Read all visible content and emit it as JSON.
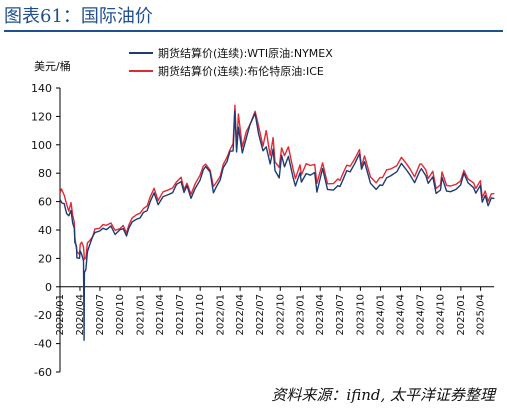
{
  "figure_title": "图表61：国际油价",
  "source": "资料来源：ifind, 太平洋证券整理",
  "chart_data": {
    "type": "line",
    "ylabel": "美元/桶",
    "ylim": [
      -60,
      140
    ],
    "yticks": [
      -60,
      -40,
      -20,
      0,
      20,
      40,
      60,
      80,
      100,
      120,
      140
    ],
    "xlim": [
      "2020-01",
      "2025-06"
    ],
    "xticks": [
      "2020/01",
      "2020/04",
      "2020/07",
      "2020/10",
      "2021/01",
      "2021/04",
      "2021/07",
      "2021/10",
      "2022/01",
      "2022/04",
      "2022/07",
      "2022/10",
      "2023/01",
      "2023/04",
      "2023/07",
      "2023/10",
      "2024/01",
      "2024/04",
      "2024/07",
      "2024/10",
      "2025/01",
      "2025/04"
    ],
    "legend_position": "top-center",
    "grid": false,
    "series": [
      {
        "name": "期货结算价(连续):WTI原油:NYMEX",
        "color": "#1f3b73",
        "points": [
          [
            "2020-01-02",
            61.2
          ],
          [
            "2020-01-10",
            59.0
          ],
          [
            "2020-01-20",
            58.5
          ],
          [
            "2020-01-31",
            51.6
          ],
          [
            "2020-02-10",
            50.0
          ],
          [
            "2020-02-20",
            53.8
          ],
          [
            "2020-02-28",
            44.8
          ],
          [
            "2020-03-06",
            41.3
          ],
          [
            "2020-03-09",
            31.1
          ],
          [
            "2020-03-16",
            28.7
          ],
          [
            "2020-03-18",
            20.4
          ],
          [
            "2020-03-30",
            20.1
          ],
          [
            "2020-04-02",
            25.3
          ],
          [
            "2020-04-09",
            22.8
          ],
          [
            "2020-04-14",
            20.1
          ],
          [
            "2020-04-17",
            18.3
          ],
          [
            "2020-04-20",
            -37.6
          ],
          [
            "2020-04-21",
            10.0
          ],
          [
            "2020-04-28",
            12.3
          ],
          [
            "2020-05-05",
            24.6
          ],
          [
            "2020-05-15",
            29.4
          ],
          [
            "2020-05-29",
            35.5
          ],
          [
            "2020-06-08",
            38.2
          ],
          [
            "2020-06-30",
            39.3
          ],
          [
            "2020-07-15",
            41.2
          ],
          [
            "2020-07-31",
            40.3
          ],
          [
            "2020-08-20",
            42.8
          ],
          [
            "2020-09-08",
            36.8
          ],
          [
            "2020-09-30",
            40.2
          ],
          [
            "2020-10-15",
            40.9
          ],
          [
            "2020-10-30",
            35.8
          ],
          [
            "2020-11-10",
            41.4
          ],
          [
            "2020-11-25",
            45.7
          ],
          [
            "2020-12-15",
            47.6
          ],
          [
            "2020-12-31",
            48.5
          ],
          [
            "2021-01-15",
            52.4
          ],
          [
            "2021-02-01",
            53.6
          ],
          [
            "2021-02-15",
            60.0
          ],
          [
            "2021-03-05",
            66.1
          ],
          [
            "2021-03-23",
            57.8
          ],
          [
            "2021-04-15",
            63.5
          ],
          [
            "2021-05-10",
            65.0
          ],
          [
            "2021-05-28",
            66.3
          ],
          [
            "2021-06-15",
            72.1
          ],
          [
            "2021-07-06",
            74.0
          ],
          [
            "2021-07-19",
            66.4
          ],
          [
            "2021-08-02",
            71.3
          ],
          [
            "2021-08-20",
            62.3
          ],
          [
            "2021-09-08",
            69.3
          ],
          [
            "2021-09-30",
            75.0
          ],
          [
            "2021-10-15",
            82.3
          ],
          [
            "2021-10-26",
            84.7
          ],
          [
            "2021-11-15",
            80.9
          ],
          [
            "2021-11-30",
            66.2
          ],
          [
            "2021-12-15",
            70.9
          ],
          [
            "2021-12-31",
            75.2
          ],
          [
            "2022-01-14",
            83.8
          ],
          [
            "2022-01-31",
            88.2
          ],
          [
            "2022-02-14",
            95.5
          ],
          [
            "2022-02-28",
            95.7
          ],
          [
            "2022-03-08",
            123.7
          ],
          [
            "2022-03-16",
            95.0
          ],
          [
            "2022-03-24",
            112.3
          ],
          [
            "2022-04-11",
            94.3
          ],
          [
            "2022-04-29",
            104.7
          ],
          [
            "2022-05-16",
            114.2
          ],
          [
            "2022-06-08",
            122.1
          ],
          [
            "2022-06-24",
            107.6
          ],
          [
            "2022-07-14",
            95.8
          ],
          [
            "2022-07-29",
            98.6
          ],
          [
            "2022-08-16",
            86.5
          ],
          [
            "2022-08-29",
            97.0
          ],
          [
            "2022-09-07",
            81.9
          ],
          [
            "2022-09-26",
            76.7
          ],
          [
            "2022-10-07",
            92.6
          ],
          [
            "2022-10-20",
            84.5
          ],
          [
            "2022-11-07",
            91.8
          ],
          [
            "2022-11-28",
            77.2
          ],
          [
            "2022-12-09",
            71.0
          ],
          [
            "2022-12-30",
            80.3
          ],
          [
            "2023-01-05",
            73.7
          ],
          [
            "2023-01-27",
            79.7
          ],
          [
            "2023-02-15",
            78.6
          ],
          [
            "2023-03-07",
            80.5
          ],
          [
            "2023-03-17",
            66.7
          ],
          [
            "2023-04-12",
            83.3
          ],
          [
            "2023-05-04",
            68.6
          ],
          [
            "2023-05-31",
            68.1
          ],
          [
            "2023-06-20",
            71.2
          ],
          [
            "2023-06-30",
            70.6
          ],
          [
            "2023-07-14",
            75.4
          ],
          [
            "2023-07-31",
            81.8
          ],
          [
            "2023-08-15",
            80.9
          ],
          [
            "2023-09-05",
            86.7
          ],
          [
            "2023-09-27",
            93.7
          ],
          [
            "2023-10-06",
            82.8
          ],
          [
            "2023-10-20",
            88.1
          ],
          [
            "2023-11-16",
            72.9
          ],
          [
            "2023-12-12",
            68.6
          ],
          [
            "2023-12-29",
            71.7
          ],
          [
            "2024-01-10",
            71.4
          ],
          [
            "2024-01-29",
            76.8
          ],
          [
            "2024-02-15",
            78.0
          ],
          [
            "2024-03-15",
            81.0
          ],
          [
            "2024-04-05",
            86.9
          ],
          [
            "2024-04-30",
            81.9
          ],
          [
            "2024-05-15",
            78.6
          ],
          [
            "2024-06-04",
            73.3
          ],
          [
            "2024-06-28",
            81.5
          ],
          [
            "2024-07-05",
            83.2
          ],
          [
            "2024-07-25",
            78.3
          ],
          [
            "2024-08-05",
            72.9
          ],
          [
            "2024-08-26",
            77.4
          ],
          [
            "2024-09-10",
            65.8
          ],
          [
            "2024-09-30",
            68.2
          ],
          [
            "2024-10-07",
            77.1
          ],
          [
            "2024-10-28",
            67.4
          ],
          [
            "2024-11-15",
            67.0
          ],
          [
            "2024-12-10",
            68.6
          ],
          [
            "2024-12-31",
            71.7
          ],
          [
            "2025-01-15",
            80.0
          ],
          [
            "2025-02-03",
            73.2
          ],
          [
            "2025-02-28",
            69.8
          ],
          [
            "2025-03-10",
            66.0
          ],
          [
            "2025-03-31",
            71.5
          ],
          [
            "2025-04-08",
            59.6
          ],
          [
            "2025-04-22",
            64.3
          ],
          [
            "2025-05-05",
            57.1
          ],
          [
            "2025-05-20",
            62.6
          ],
          [
            "2025-06-03",
            62.1
          ]
        ]
      },
      {
        "name": "期货结算价(连续):布伦特原油:ICE",
        "color": "#e02a36",
        "points": [
          [
            "2020-01-02",
            66.3
          ],
          [
            "2020-01-08",
            68.9
          ],
          [
            "2020-01-20",
            64.6
          ],
          [
            "2020-01-31",
            58.2
          ],
          [
            "2020-02-10",
            53.3
          ],
          [
            "2020-02-20",
            59.3
          ],
          [
            "2020-02-28",
            50.5
          ],
          [
            "2020-03-06",
            45.3
          ],
          [
            "2020-03-09",
            34.4
          ],
          [
            "2020-03-18",
            24.9
          ],
          [
            "2020-03-30",
            22.8
          ],
          [
            "2020-04-02",
            29.9
          ],
          [
            "2020-04-09",
            31.5
          ],
          [
            "2020-04-17",
            28.1
          ],
          [
            "2020-04-21",
            19.3
          ],
          [
            "2020-04-28",
            20.5
          ],
          [
            "2020-05-05",
            30.9
          ],
          [
            "2020-05-15",
            32.5
          ],
          [
            "2020-05-29",
            35.3
          ],
          [
            "2020-06-08",
            40.8
          ],
          [
            "2020-06-30",
            41.2
          ],
          [
            "2020-07-15",
            43.8
          ],
          [
            "2020-07-31",
            43.3
          ],
          [
            "2020-08-20",
            44.9
          ],
          [
            "2020-09-08",
            39.8
          ],
          [
            "2020-09-30",
            41.0
          ],
          [
            "2020-10-15",
            43.2
          ],
          [
            "2020-10-30",
            37.9
          ],
          [
            "2020-11-10",
            43.6
          ],
          [
            "2020-11-25",
            48.6
          ],
          [
            "2020-12-15",
            50.8
          ],
          [
            "2020-12-31",
            51.8
          ],
          [
            "2021-01-15",
            55.1
          ],
          [
            "2021-02-01",
            57.0
          ],
          [
            "2021-02-15",
            63.3
          ],
          [
            "2021-03-05",
            69.4
          ],
          [
            "2021-03-23",
            60.8
          ],
          [
            "2021-04-15",
            66.9
          ],
          [
            "2021-05-10",
            68.3
          ],
          [
            "2021-05-28",
            69.6
          ],
          [
            "2021-06-15",
            73.9
          ],
          [
            "2021-07-06",
            77.2
          ],
          [
            "2021-07-19",
            68.6
          ],
          [
            "2021-08-02",
            72.9
          ],
          [
            "2021-08-20",
            65.2
          ],
          [
            "2021-09-08",
            72.6
          ],
          [
            "2021-09-30",
            78.5
          ],
          [
            "2021-10-15",
            84.9
          ],
          [
            "2021-10-26",
            86.4
          ],
          [
            "2021-11-15",
            82.1
          ],
          [
            "2021-11-30",
            70.6
          ],
          [
            "2021-12-15",
            73.9
          ],
          [
            "2021-12-31",
            77.8
          ],
          [
            "2022-01-14",
            86.1
          ],
          [
            "2022-01-31",
            91.2
          ],
          [
            "2022-02-14",
            96.5
          ],
          [
            "2022-02-28",
            100.9
          ],
          [
            "2022-03-08",
            127.9
          ],
          [
            "2022-03-16",
            98.0
          ],
          [
            "2022-03-24",
            121.6
          ],
          [
            "2022-04-11",
            98.5
          ],
          [
            "2022-04-29",
            109.3
          ],
          [
            "2022-05-16",
            114.2
          ],
          [
            "2022-06-08",
            123.6
          ],
          [
            "2022-06-24",
            113.1
          ],
          [
            "2022-07-14",
            99.1
          ],
          [
            "2022-07-29",
            110.0
          ],
          [
            "2022-08-16",
            92.3
          ],
          [
            "2022-08-29",
            105.1
          ],
          [
            "2022-09-07",
            88.0
          ],
          [
            "2022-09-26",
            84.1
          ],
          [
            "2022-10-07",
            97.9
          ],
          [
            "2022-10-20",
            92.4
          ],
          [
            "2022-11-07",
            98.6
          ],
          [
            "2022-11-28",
            83.2
          ],
          [
            "2022-12-09",
            76.1
          ],
          [
            "2022-12-30",
            85.9
          ],
          [
            "2023-01-05",
            78.7
          ],
          [
            "2023-01-27",
            86.7
          ],
          [
            "2023-02-15",
            85.4
          ],
          [
            "2023-03-07",
            86.2
          ],
          [
            "2023-03-17",
            72.9
          ],
          [
            "2023-04-12",
            87.3
          ],
          [
            "2023-05-04",
            72.5
          ],
          [
            "2023-05-31",
            72.7
          ],
          [
            "2023-06-20",
            75.9
          ],
          [
            "2023-06-30",
            74.9
          ],
          [
            "2023-07-14",
            79.9
          ],
          [
            "2023-07-31",
            85.6
          ],
          [
            "2023-08-15",
            84.9
          ],
          [
            "2023-09-05",
            90.0
          ],
          [
            "2023-09-27",
            96.6
          ],
          [
            "2023-10-06",
            84.6
          ],
          [
            "2023-10-20",
            92.2
          ],
          [
            "2023-11-16",
            77.4
          ],
          [
            "2023-12-12",
            73.2
          ],
          [
            "2023-12-29",
            77.0
          ],
          [
            "2024-01-10",
            76.8
          ],
          [
            "2024-01-29",
            82.4
          ],
          [
            "2024-02-15",
            82.9
          ],
          [
            "2024-03-15",
            85.3
          ],
          [
            "2024-04-05",
            91.2
          ],
          [
            "2024-04-30",
            86.3
          ],
          [
            "2024-05-15",
            82.8
          ],
          [
            "2024-06-04",
            77.5
          ],
          [
            "2024-06-28",
            86.4
          ],
          [
            "2024-07-05",
            86.5
          ],
          [
            "2024-07-25",
            82.4
          ],
          [
            "2024-08-05",
            76.3
          ],
          [
            "2024-08-26",
            81.4
          ],
          [
            "2024-09-10",
            69.2
          ],
          [
            "2024-09-30",
            71.8
          ],
          [
            "2024-10-07",
            80.9
          ],
          [
            "2024-10-28",
            71.4
          ],
          [
            "2024-11-15",
            71.0
          ],
          [
            "2024-12-10",
            72.2
          ],
          [
            "2024-12-31",
            74.6
          ],
          [
            "2025-01-15",
            82.0
          ],
          [
            "2025-02-03",
            75.9
          ],
          [
            "2025-02-28",
            73.2
          ],
          [
            "2025-03-10",
            69.3
          ],
          [
            "2025-03-31",
            74.7
          ],
          [
            "2025-04-08",
            62.8
          ],
          [
            "2025-04-22",
            67.4
          ],
          [
            "2025-05-05",
            60.2
          ],
          [
            "2025-05-20",
            65.5
          ],
          [
            "2025-06-03",
            65.6
          ]
        ]
      }
    ]
  }
}
